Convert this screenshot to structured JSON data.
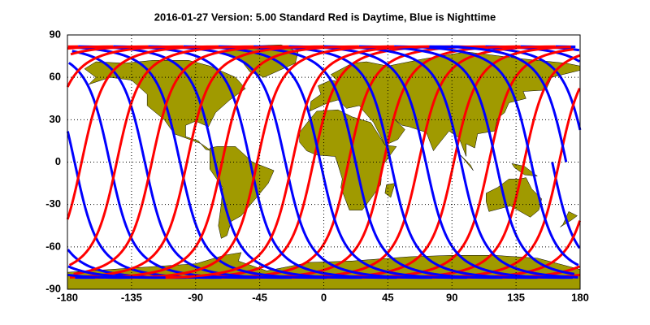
{
  "chart_data": {
    "type": "map",
    "title": "2016-01-27    Version: 5.00  Standard     Red is Daytime, Blue is Nighttime",
    "xlim": [
      -180,
      180
    ],
    "ylim": [
      -90,
      90
    ],
    "xticks": [
      -180,
      -135,
      -90,
      -45,
      0,
      45,
      90,
      135,
      180
    ],
    "yticks": [
      -90,
      -60,
      -30,
      0,
      30,
      60,
      90
    ],
    "grid": true
  }
}
